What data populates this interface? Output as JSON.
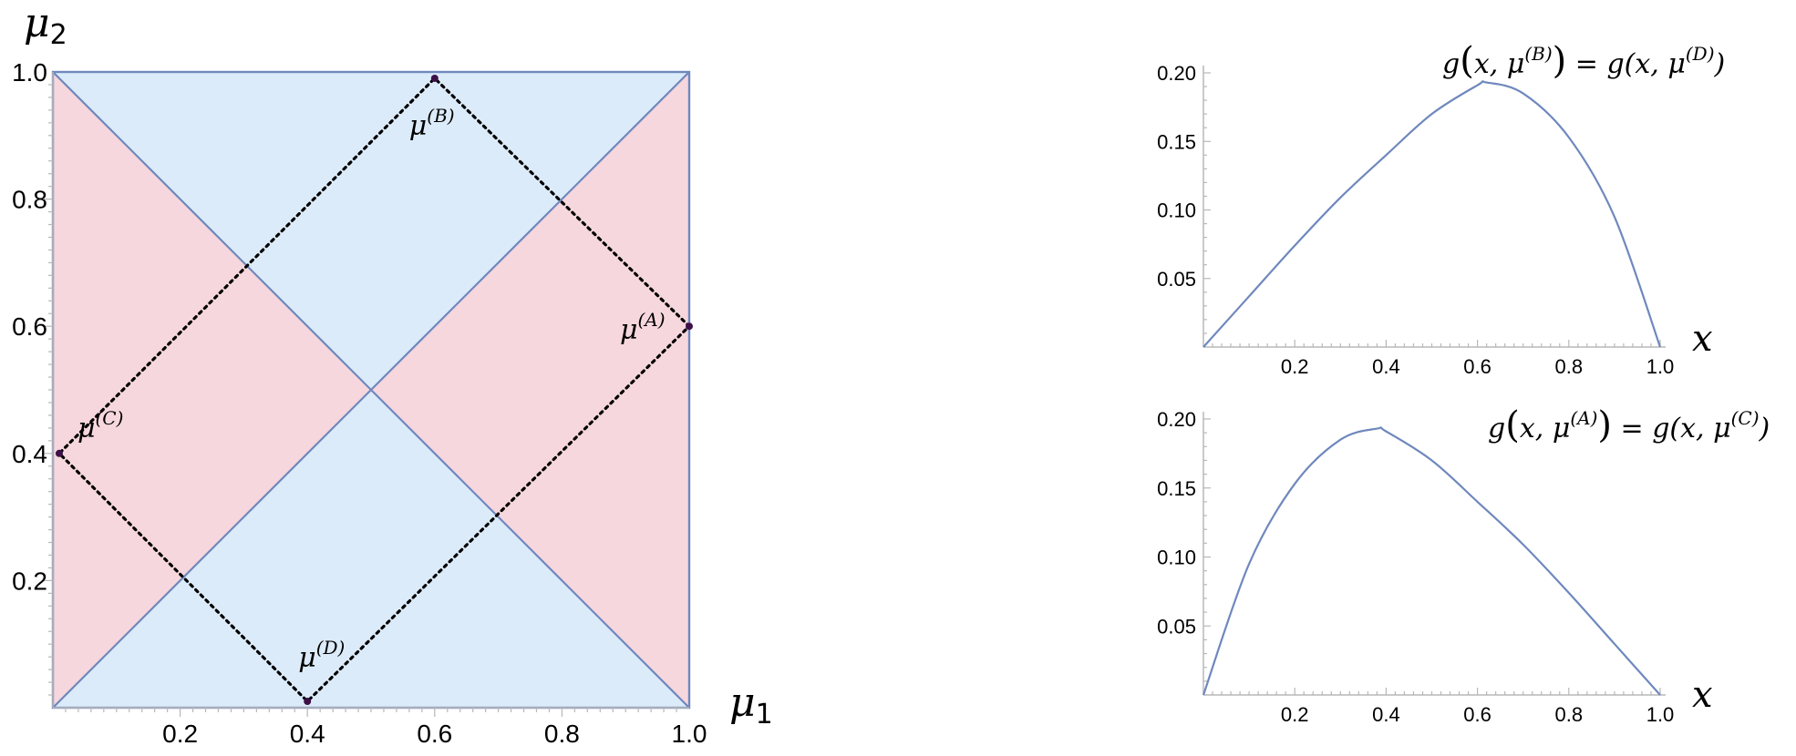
{
  "chart_data": [
    {
      "type": "region-plot",
      "xlabel": "μ1",
      "ylabel": "μ2",
      "xlim": [
        0,
        1
      ],
      "ylim": [
        0,
        1
      ],
      "x_ticks": [
        "0.2",
        "0.4",
        "0.6",
        "0.8",
        "1.0"
      ],
      "y_ticks": [
        "0.2",
        "0.4",
        "0.6",
        "0.8",
        "1.0"
      ],
      "colors": {
        "blue_region": "#dcebf9",
        "red_region": "#f6d7dd",
        "lines": "#6f88bd",
        "points": "#3d1048",
        "dotted": "#000000"
      },
      "diagonals": [
        {
          "from": [
            0,
            0
          ],
          "to": [
            1,
            1
          ]
        },
        {
          "from": [
            0,
            1
          ],
          "to": [
            1,
            0
          ]
        }
      ],
      "points": [
        {
          "name": "A",
          "label": "μ",
          "sup": "(A)",
          "x": 1.0,
          "y": 0.6
        },
        {
          "name": "B",
          "label": "μ",
          "sup": "(B)",
          "x": 0.6,
          "y": 0.99
        },
        {
          "name": "C",
          "label": "μ",
          "sup": "(C)",
          "x": 0.01,
          "y": 0.4
        },
        {
          "name": "D",
          "label": "μ",
          "sup": "(D)",
          "x": 0.4,
          "y": 0.01
        }
      ],
      "dotted_path": [
        "A",
        "B",
        "C",
        "D",
        "A"
      ]
    },
    {
      "type": "line",
      "title": "g(x, μ(B)) = g(x, μ(D))",
      "xlabel": "x",
      "xlim": [
        0,
        1
      ],
      "ylim": [
        0,
        0.2
      ],
      "x_ticks": [
        "0.2",
        "0.4",
        "0.6",
        "0.8",
        "1.0"
      ],
      "y_ticks": [
        "0.05",
        "0.10",
        "0.15",
        "0.20"
      ],
      "series": [
        {
          "x": [
            0,
            0.1,
            0.2,
            0.3,
            0.4,
            0.5,
            0.6,
            0.62,
            0.7,
            0.8,
            0.9,
            1.0
          ],
          "y": [
            0,
            0.037,
            0.074,
            0.109,
            0.14,
            0.17,
            0.191,
            0.193,
            0.185,
            0.153,
            0.095,
            0
          ]
        }
      ]
    },
    {
      "type": "line",
      "title": "g(x, μ(A)) = g(x, μ(C))",
      "xlabel": "x",
      "xlim": [
        0,
        1
      ],
      "ylim": [
        0,
        0.2
      ],
      "x_ticks": [
        "0.2",
        "0.4",
        "0.6",
        "0.8",
        "1.0"
      ],
      "y_ticks": [
        "0.05",
        "0.10",
        "0.15",
        "0.20"
      ],
      "series": [
        {
          "x": [
            0,
            0.1,
            0.2,
            0.3,
            0.38,
            0.4,
            0.5,
            0.6,
            0.7,
            0.8,
            0.9,
            1.0
          ],
          "y": [
            0,
            0.095,
            0.153,
            0.185,
            0.193,
            0.191,
            0.17,
            0.14,
            0.109,
            0.074,
            0.037,
            0
          ]
        }
      ]
    }
  ]
}
